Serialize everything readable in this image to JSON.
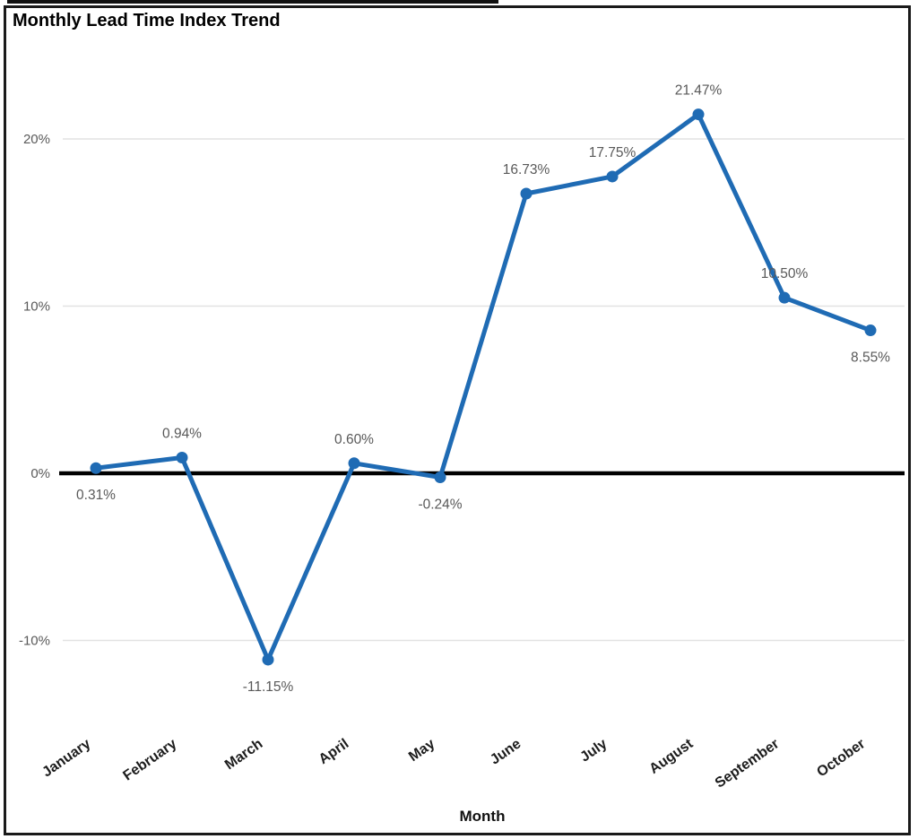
{
  "chart_data": {
    "type": "line",
    "title": "Monthly Lead Time Index Trend",
    "xlabel": "Month",
    "ylabel": "",
    "x": [
      "January",
      "February",
      "March",
      "April",
      "May",
      "June",
      "July",
      "August",
      "September",
      "October"
    ],
    "series": [
      {
        "name": "Monthly Lead Time Index",
        "values": [
          0.31,
          0.94,
          -11.15,
          0.6,
          -0.24,
          16.73,
          17.75,
          21.47,
          10.5,
          8.55
        ]
      }
    ],
    "data_labels": [
      "0.31%",
      "0.94%",
      "-11.15%",
      "0.60%",
      "-0.24%",
      "16.73%",
      "17.75%",
      "21.47%",
      "10.50%",
      "8.55%"
    ],
    "data_label_position": [
      "below",
      "above",
      "below",
      "above",
      "below",
      "above",
      "above",
      "above",
      "above",
      "below"
    ],
    "y_ticks": [
      {
        "label": "20%",
        "value": 20
      },
      {
        "label": "10%",
        "value": 10
      },
      {
        "label": "0%",
        "value": 0
      },
      {
        "label": "-10%",
        "value": -10
      }
    ],
    "ylim": [
      -14,
      24
    ],
    "grid": "horizontal",
    "legend": "none",
    "zero_line": true,
    "colors": {
      "line": "#1F6BB4",
      "marker": "#1F6BB4",
      "grid": "#E2E2E2",
      "zero_line": "#000000",
      "data_label": "#595959",
      "y_tick": "#595959",
      "x_tick": "#1c1c1c",
      "title": "#000000"
    }
  }
}
